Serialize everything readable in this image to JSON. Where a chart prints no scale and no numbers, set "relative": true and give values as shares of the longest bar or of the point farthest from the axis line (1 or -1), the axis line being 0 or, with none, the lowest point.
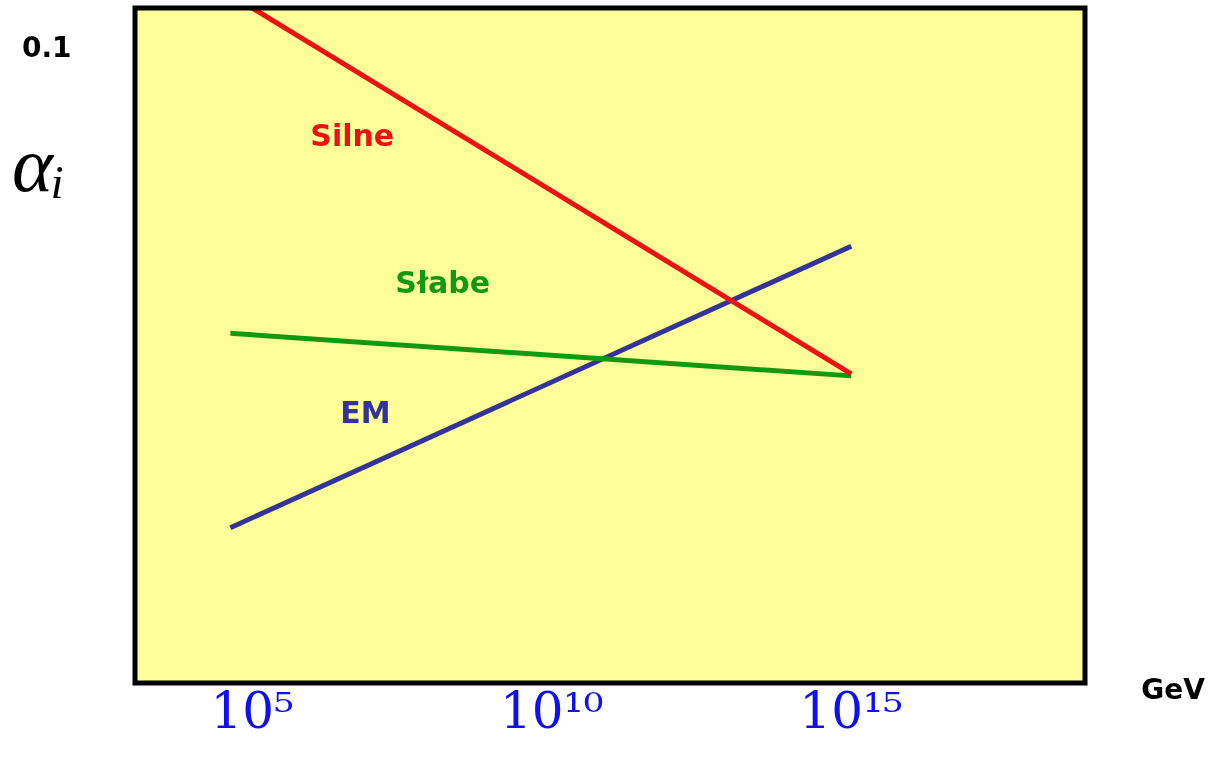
{
  "chart_data": {
    "type": "line",
    "ylabel": "αᵢ",
    "xlabel": "GeV",
    "log": "x",
    "relative": true,
    "xlim": [
      1100,
      8e+18
    ],
    "xticks": [
      {
        "value": 100000,
        "label": "10⁵"
      },
      {
        "value": 10000000000.0,
        "label": "10¹⁰"
      },
      {
        "value": 1000000000000000.0,
        "label": "10¹⁵"
      }
    ],
    "grid": false,
    "legend": false,
    "marker": "none",
    "line_style": "solid",
    "annotations": [
      "0.1"
    ],
    "series": [
      {
        "name": "Silne",
        "color": "#ee1111",
        "x": [
          100000,
          1000000000000000.0
        ],
        "values": [
          1,
          0.458
        ]
      },
      {
        "name": "Słabe",
        "color": "#119911",
        "x": [
          43000,
          1000000000000000.0
        ],
        "values": [
          0.518,
          0.455
        ]
      },
      {
        "name": "EM",
        "color": "#333399",
        "x": [
          43000,
          1000000000000000.0
        ],
        "values": [
          0.23,
          0.647
        ]
      }
    ]
  }
}
